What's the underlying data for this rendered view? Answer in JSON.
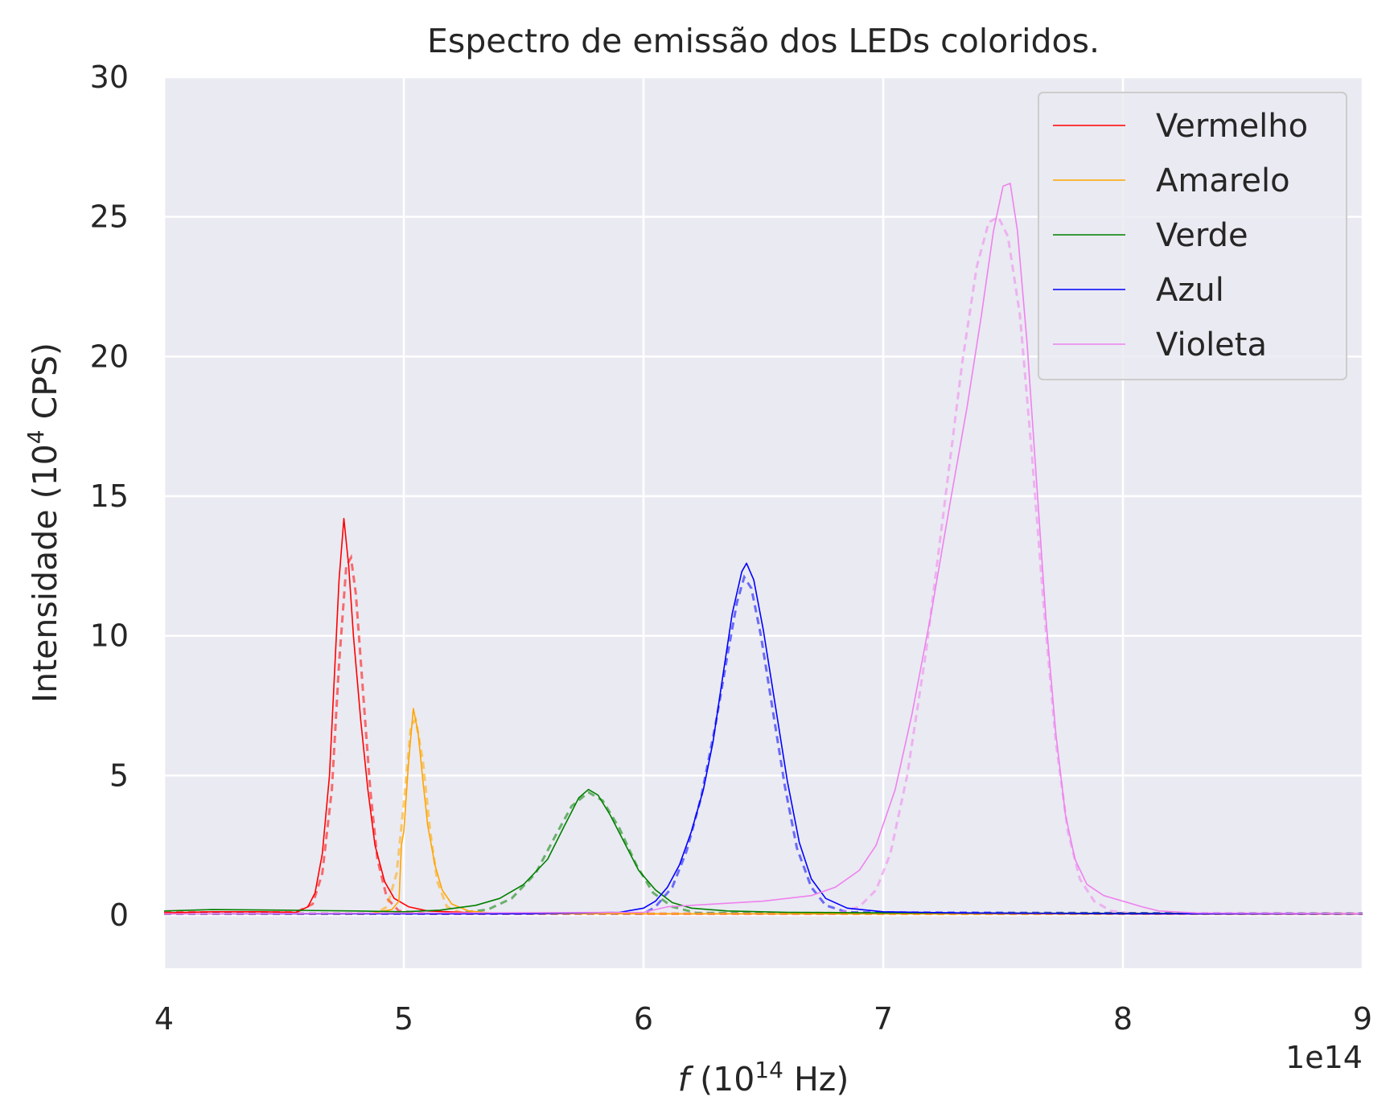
{
  "chart_data": {
    "type": "line",
    "title": "Espectro de emissão dos LEDs coloridos.",
    "xlabel": {
      "prefix": "f",
      "text": " (10",
      "sup": "14",
      "suffix": " Hz)"
    },
    "ylabel": {
      "text": "Intensidade (10",
      "sup": "4",
      "suffix": " CPS)"
    },
    "x_offset_label": "1e14",
    "xlim": [
      4,
      9
    ],
    "ylim": [
      -1.9,
      30
    ],
    "xticks": [
      4,
      5,
      6,
      7,
      8,
      9
    ],
    "yticks": [
      0,
      5,
      10,
      15,
      20,
      25,
      30
    ],
    "grid": true,
    "legend_position": "top-right",
    "x_units_note": "x values in units of 1e14 Hz, as printed on the tick labels",
    "series": [
      {
        "name": "Vermelho",
        "color": "#ff0000",
        "measured": [
          [
            4.0,
            0.08
          ],
          [
            4.2,
            0.12
          ],
          [
            4.4,
            0.12
          ],
          [
            4.55,
            0.1
          ],
          [
            4.6,
            0.3
          ],
          [
            4.63,
            0.8
          ],
          [
            4.66,
            2.2
          ],
          [
            4.69,
            5.0
          ],
          [
            4.71,
            8.5
          ],
          [
            4.73,
            12.0
          ],
          [
            4.75,
            14.2
          ],
          [
            4.77,
            12.5
          ],
          [
            4.79,
            10.0
          ],
          [
            4.82,
            7.0
          ],
          [
            4.85,
            4.5
          ],
          [
            4.88,
            2.5
          ],
          [
            4.92,
            1.2
          ],
          [
            4.96,
            0.6
          ],
          [
            5.02,
            0.3
          ],
          [
            5.1,
            0.15
          ],
          [
            5.3,
            0.08
          ],
          [
            6.0,
            0.05
          ],
          [
            9.0,
            0.05
          ]
        ],
        "fit": [
          [
            4.0,
            0.1
          ],
          [
            4.55,
            0.1
          ],
          [
            4.62,
            0.4
          ],
          [
            4.66,
            1.5
          ],
          [
            4.7,
            4.5
          ],
          [
            4.73,
            9.0
          ],
          [
            4.76,
            12.5
          ],
          [
            4.78,
            12.8
          ],
          [
            4.8,
            11.5
          ],
          [
            4.83,
            8.0
          ],
          [
            4.86,
            4.5
          ],
          [
            4.89,
            2.0
          ],
          [
            4.93,
            0.6
          ],
          [
            4.98,
            0.15
          ],
          [
            5.1,
            0.05
          ],
          [
            9.0,
            0.05
          ]
        ]
      },
      {
        "name": "Amarelo",
        "color": "#ffa500",
        "measured": [
          [
            4.0,
            0.05
          ],
          [
            4.85,
            0.05
          ],
          [
            4.95,
            0.2
          ],
          [
            4.98,
            0.5
          ],
          [
            4.99,
            2.5
          ],
          [
            5.0,
            3.0
          ],
          [
            5.02,
            5.5
          ],
          [
            5.04,
            7.4
          ],
          [
            5.06,
            6.5
          ],
          [
            5.08,
            4.8
          ],
          [
            5.1,
            3.2
          ],
          [
            5.13,
            1.8
          ],
          [
            5.16,
            0.9
          ],
          [
            5.2,
            0.4
          ],
          [
            5.27,
            0.15
          ],
          [
            5.4,
            0.05
          ],
          [
            9.0,
            0.05
          ]
        ],
        "fit": [
          [
            4.0,
            0.05
          ],
          [
            4.88,
            0.05
          ],
          [
            4.93,
            0.3
          ],
          [
            4.97,
            1.5
          ],
          [
            5.0,
            4.0
          ],
          [
            5.03,
            6.8
          ],
          [
            5.05,
            7.0
          ],
          [
            5.08,
            5.5
          ],
          [
            5.11,
            3.0
          ],
          [
            5.14,
            1.2
          ],
          [
            5.18,
            0.3
          ],
          [
            5.25,
            0.05
          ],
          [
            9.0,
            0.05
          ]
        ]
      },
      {
        "name": "Verde",
        "color": "#008000",
        "measured": [
          [
            4.0,
            0.15
          ],
          [
            4.2,
            0.2
          ],
          [
            4.5,
            0.18
          ],
          [
            4.8,
            0.15
          ],
          [
            5.0,
            0.12
          ],
          [
            5.15,
            0.18
          ],
          [
            5.3,
            0.35
          ],
          [
            5.4,
            0.6
          ],
          [
            5.5,
            1.1
          ],
          [
            5.6,
            2.0
          ],
          [
            5.67,
            3.2
          ],
          [
            5.73,
            4.2
          ],
          [
            5.77,
            4.5
          ],
          [
            5.81,
            4.3
          ],
          [
            5.86,
            3.6
          ],
          [
            5.92,
            2.6
          ],
          [
            5.98,
            1.6
          ],
          [
            6.05,
            0.9
          ],
          [
            6.12,
            0.45
          ],
          [
            6.2,
            0.25
          ],
          [
            6.35,
            0.15
          ],
          [
            6.6,
            0.1
          ],
          [
            7.0,
            0.08
          ],
          [
            9.0,
            0.05
          ]
        ],
        "fit": [
          [
            4.0,
            0.05
          ],
          [
            5.2,
            0.05
          ],
          [
            5.35,
            0.2
          ],
          [
            5.45,
            0.6
          ],
          [
            5.55,
            1.5
          ],
          [
            5.63,
            2.8
          ],
          [
            5.7,
            3.9
          ],
          [
            5.77,
            4.4
          ],
          [
            5.83,
            4.1
          ],
          [
            5.9,
            3.1
          ],
          [
            5.97,
            1.8
          ],
          [
            6.04,
            0.8
          ],
          [
            6.12,
            0.3
          ],
          [
            6.22,
            0.08
          ],
          [
            9.0,
            0.05
          ]
        ]
      },
      {
        "name": "Azul",
        "color": "#0000ff",
        "measured": [
          [
            4.0,
            0.05
          ],
          [
            5.5,
            0.05
          ],
          [
            5.9,
            0.1
          ],
          [
            6.0,
            0.25
          ],
          [
            6.05,
            0.5
          ],
          [
            6.1,
            1.0
          ],
          [
            6.15,
            1.8
          ],
          [
            6.2,
            3.0
          ],
          [
            6.25,
            4.5
          ],
          [
            6.29,
            6.2
          ],
          [
            6.33,
            8.5
          ],
          [
            6.37,
            10.8
          ],
          [
            6.41,
            12.3
          ],
          [
            6.43,
            12.6
          ],
          [
            6.46,
            12.0
          ],
          [
            6.5,
            10.2
          ],
          [
            6.55,
            7.5
          ],
          [
            6.6,
            4.8
          ],
          [
            6.65,
            2.6
          ],
          [
            6.7,
            1.3
          ],
          [
            6.76,
            0.6
          ],
          [
            6.85,
            0.25
          ],
          [
            7.0,
            0.12
          ],
          [
            7.3,
            0.08
          ],
          [
            8.0,
            0.05
          ],
          [
            9.0,
            0.05
          ]
        ],
        "fit": [
          [
            4.0,
            0.05
          ],
          [
            6.0,
            0.05
          ],
          [
            6.05,
            0.3
          ],
          [
            6.12,
            1.0
          ],
          [
            6.18,
            2.3
          ],
          [
            6.24,
            4.2
          ],
          [
            6.3,
            6.8
          ],
          [
            6.35,
            9.3
          ],
          [
            6.39,
            11.2
          ],
          [
            6.42,
            12.1
          ],
          [
            6.45,
            11.7
          ],
          [
            6.49,
            10.0
          ],
          [
            6.54,
            7.3
          ],
          [
            6.59,
            4.6
          ],
          [
            6.64,
            2.4
          ],
          [
            6.7,
            1.0
          ],
          [
            6.76,
            0.35
          ],
          [
            6.85,
            0.1
          ],
          [
            9.0,
            0.05
          ]
        ]
      },
      {
        "name": "Violeta",
        "color": "#ee82ee",
        "measured": [
          [
            4.0,
            0.05
          ],
          [
            6.0,
            0.1
          ],
          [
            6.1,
            0.3
          ],
          [
            6.3,
            0.4
          ],
          [
            6.5,
            0.5
          ],
          [
            6.7,
            0.7
          ],
          [
            6.8,
            1.0
          ],
          [
            6.9,
            1.6
          ],
          [
            6.97,
            2.5
          ],
          [
            7.05,
            4.5
          ],
          [
            7.12,
            7.2
          ],
          [
            7.2,
            10.8
          ],
          [
            7.28,
            14.8
          ],
          [
            7.35,
            18.2
          ],
          [
            7.41,
            21.5
          ],
          [
            7.46,
            24.5
          ],
          [
            7.5,
            26.1
          ],
          [
            7.53,
            26.2
          ],
          [
            7.56,
            24.5
          ],
          [
            7.6,
            20.5
          ],
          [
            7.64,
            15.5
          ],
          [
            7.68,
            10.5
          ],
          [
            7.72,
            6.5
          ],
          [
            7.76,
            3.6
          ],
          [
            7.8,
            2.0
          ],
          [
            7.85,
            1.1
          ],
          [
            7.92,
            0.7
          ],
          [
            8.0,
            0.5
          ],
          [
            8.08,
            0.3
          ],
          [
            8.15,
            0.15
          ],
          [
            8.3,
            0.08
          ],
          [
            9.0,
            0.05
          ]
        ],
        "fit": [
          [
            4.0,
            0.05
          ],
          [
            6.8,
            0.05
          ],
          [
            6.9,
            0.3
          ],
          [
            6.97,
            0.9
          ],
          [
            7.03,
            2.2
          ],
          [
            7.1,
            5.0
          ],
          [
            7.18,
            9.5
          ],
          [
            7.26,
            15.0
          ],
          [
            7.33,
            19.8
          ],
          [
            7.39,
            23.2
          ],
          [
            7.44,
            24.8
          ],
          [
            7.48,
            25.0
          ],
          [
            7.52,
            24.3
          ],
          [
            7.57,
            21.5
          ],
          [
            7.62,
            16.5
          ],
          [
            7.67,
            11.0
          ],
          [
            7.72,
            6.2
          ],
          [
            7.77,
            3.0
          ],
          [
            7.82,
            1.3
          ],
          [
            7.88,
            0.5
          ],
          [
            7.95,
            0.15
          ],
          [
            8.05,
            0.05
          ],
          [
            9.0,
            0.05
          ]
        ]
      }
    ]
  }
}
